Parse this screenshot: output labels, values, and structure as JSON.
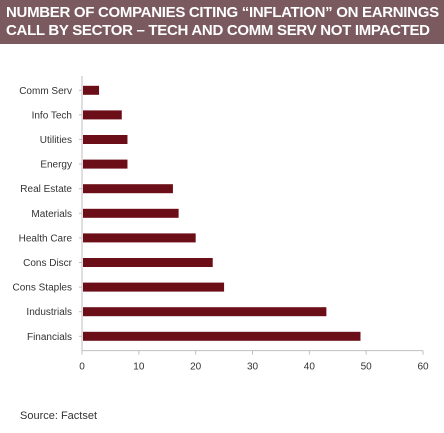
{
  "title": {
    "line1": "NUMBER OF COMPANIES CITING “INFLATION” ON EARNINGS",
    "line2": "CALL BY SECTOR – TECH AND COMM SERV NOT IMPACTED"
  },
  "source": "Source:  Factset",
  "colors": {
    "bar": "#6b0e17",
    "title_bg": "#7a5a5f",
    "axis": "#bfbfbf"
  },
  "chart_data": {
    "type": "bar",
    "orientation": "horizontal",
    "title": "NUMBER OF COMPANIES CITING “INFLATION” ON EARNINGS CALL BY SECTOR – TECH AND COMM SERV NOT IMPACTED",
    "categories": [
      "Comm Serv",
      "Info Tech",
      "Utilities",
      "Energy",
      "Real Estate",
      "Materials",
      "Health Care",
      "Cons Discr",
      "Cons Staples",
      "Industrials",
      "Financials"
    ],
    "values": [
      3,
      7,
      8,
      8,
      16,
      17,
      20,
      23,
      25,
      43,
      49
    ],
    "xlabel": "",
    "ylabel": "",
    "xlim": [
      0,
      60
    ],
    "xticks": [
      "0",
      "10",
      "20",
      "30",
      "40",
      "50",
      "60"
    ],
    "grid": false,
    "legend": "none"
  }
}
